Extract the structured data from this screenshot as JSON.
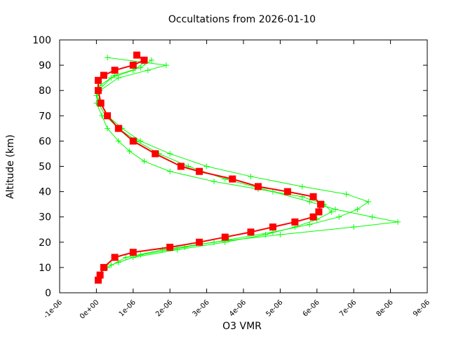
{
  "chart_data": {
    "type": "profile",
    "title": "Occultations from 2026-01-10",
    "xlabel": "O3 VMR",
    "ylabel": "Altitude (km)",
    "xlim": [
      -1e-06,
      9e-06
    ],
    "xticks": [
      {
        "value": -1e-06,
        "label": "-1e-06"
      },
      {
        "value": 0,
        "label": "0e+00"
      },
      {
        "value": 1e-06,
        "label": "1e-06"
      },
      {
        "value": 2e-06,
        "label": "2e-06"
      },
      {
        "value": 3e-06,
        "label": "3e-06"
      },
      {
        "value": 4e-06,
        "label": "4e-06"
      },
      {
        "value": 5e-06,
        "label": "5e-06"
      },
      {
        "value": 6e-06,
        "label": "6e-06"
      },
      {
        "value": 7e-06,
        "label": "7e-06"
      },
      {
        "value": 8e-06,
        "label": "8e-06"
      },
      {
        "value": 9e-06,
        "label": "9e-06"
      }
    ],
    "ylim": [
      0,
      100
    ],
    "yticks": [
      0,
      10,
      20,
      30,
      40,
      50,
      60,
      70,
      80,
      90,
      100
    ],
    "grid": false,
    "series": [
      {
        "color": "#00ff00",
        "marker": "plus",
        "x": [
          3e-07,
          8e-07,
          1.8e-06,
          3.2e-06,
          5e-06,
          7e-06,
          8.2e-06,
          7.5e-06,
          6.5e-06,
          5.8e-06,
          4.8e-06,
          3.5e-06,
          2.5e-06,
          1.7e-06,
          1.1e-06,
          6e-07,
          2.5e-07,
          5e-08,
          1e-07,
          6e-07,
          1.4e-06,
          1.9e-06,
          3e-07
        ],
        "values": [
          10,
          14,
          17,
          20,
          23,
          26,
          28,
          30,
          33,
          36,
          40,
          45,
          50,
          55,
          60,
          65,
          70,
          75,
          80,
          85,
          88,
          90,
          93
        ]
      },
      {
        "color": "#00ff00",
        "marker": "plus",
        "x": [
          6e-07,
          1.2e-06,
          2.4e-06,
          3.6e-06,
          4.8e-06,
          5.8e-06,
          6.6e-06,
          7.1e-06,
          7.4e-06,
          6.8e-06,
          5.6e-06,
          4.2e-06,
          3e-06,
          2e-06,
          1.2e-06,
          7e-07,
          3e-07,
          1e-07,
          0.0,
          1e-07,
          5e-07,
          1.2e-06,
          1.5e-06
        ],
        "values": [
          12,
          15,
          18,
          21,
          24,
          27,
          30,
          33,
          36,
          39,
          42,
          46,
          50,
          55,
          60,
          65,
          70,
          75,
          78,
          82,
          86,
          89,
          92
        ]
      },
      {
        "color": "#00ff00",
        "marker": "plus",
        "x": [
          4e-07,
          1e-06,
          2.2e-06,
          3.5e-06,
          4.6e-06,
          5.4e-06,
          6e-06,
          6.4e-06,
          6.2e-06,
          5.6e-06,
          4.4e-06,
          3.2e-06,
          2e-06,
          1.3e-06,
          9e-07,
          6e-07,
          3e-07,
          1.5e-07,
          0.0,
          5e-08,
          4e-07,
          1e-06,
          1.3e-06
        ],
        "values": [
          11,
          14,
          17,
          20,
          23,
          26,
          29,
          32,
          35,
          38,
          41,
          44,
          48,
          52,
          56,
          60,
          65,
          70,
          75,
          80,
          85,
          88,
          91
        ]
      },
      {
        "color": "#ff0000",
        "marker": "square",
        "x": [
          5e-08,
          1e-07,
          2e-07,
          5e-07,
          1e-06,
          2e-06,
          2.8e-06,
          3.5e-06,
          4.2e-06,
          4.8e-06,
          5.4e-06,
          5.9e-06,
          6.05e-06,
          6.1e-06,
          5.9e-06,
          5.2e-06,
          4.4e-06,
          3.7e-06,
          2.8e-06,
          2.3e-06,
          1.6e-06,
          1e-06,
          6e-07,
          3e-07,
          1.2e-07,
          5e-08,
          5e-08,
          2e-07,
          5e-07,
          1e-06,
          1.3e-06,
          1.1e-06
        ],
        "values": [
          5,
          7,
          10,
          14,
          16,
          18,
          20,
          22,
          24,
          26,
          28,
          30,
          32,
          35,
          38,
          40,
          42,
          45,
          48,
          50,
          55,
          60,
          65,
          70,
          75,
          80,
          84,
          86,
          88,
          90,
          92,
          94
        ]
      }
    ]
  }
}
